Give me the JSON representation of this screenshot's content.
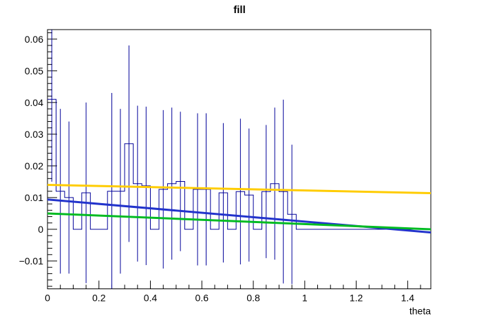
{
  "chart_data": {
    "type": "bar",
    "style": "root-histogram-with-error-bars-and-fit-lines",
    "title": "fill",
    "xlabel": "theta",
    "ylabel": "",
    "grid": false,
    "legend": "none",
    "x_range": [
      0,
      1.49
    ],
    "y_range": [
      -0.0188,
      0.063
    ],
    "x_major_ticks": [
      {
        "value": 0,
        "label": "0"
      },
      {
        "value": 0.2,
        "label": "0.2"
      },
      {
        "value": 0.4,
        "label": "0.4"
      },
      {
        "value": 0.6,
        "label": "0.6"
      },
      {
        "value": 0.8,
        "label": "0.8"
      },
      {
        "value": 1,
        "label": "1"
      },
      {
        "value": 1.2,
        "label": "1.2"
      },
      {
        "value": 1.4,
        "label": "1.4"
      }
    ],
    "x_minor_step": 0.05,
    "y_major_ticks": [
      {
        "value": -0.01,
        "label": "−0.01"
      },
      {
        "value": 0,
        "label": "0"
      },
      {
        "value": 0.01,
        "label": "0.01"
      },
      {
        "value": 0.02,
        "label": "0.02"
      },
      {
        "value": 0.03,
        "label": "0.03"
      },
      {
        "value": 0.04,
        "label": "0.04"
      },
      {
        "value": 0.05,
        "label": "0.05"
      },
      {
        "value": 0.06,
        "label": "0.06"
      }
    ],
    "y_minor_step": 0.002,
    "histogram": {
      "bin_start": 0,
      "bin_width": 0.0333333,
      "n_bins": 45,
      "values": [
        0.041,
        0.012,
        0.01,
        0,
        0.0115,
        0,
        0,
        0.012,
        0.012,
        0.027,
        0.0144,
        0.0137,
        0,
        0.0126,
        0.0144,
        0.0151,
        0,
        0.0126,
        0.0126,
        0,
        0.0115,
        0,
        0.0119,
        0.0108,
        0,
        0.0119,
        0.0144,
        0.0119,
        0.0047,
        0,
        0,
        0,
        0,
        0,
        0,
        0,
        0,
        0,
        0,
        0,
        0,
        0,
        0,
        0,
        0
      ],
      "errors": [
        0.026,
        0.026,
        0.024,
        0,
        0.0285,
        0,
        0,
        0.031,
        0.026,
        0.031,
        0.0246,
        0.025,
        0,
        0.025,
        0.024,
        0.022,
        0,
        0.024,
        0.024,
        0,
        0.022,
        0,
        0.023,
        0.021,
        0,
        0.021,
        0.024,
        0.029,
        0.022,
        0,
        0,
        0,
        0,
        0,
        0,
        0,
        0,
        0,
        0,
        0,
        0,
        0,
        0,
        0,
        0
      ]
    },
    "fits": [
      {
        "name": "fit-line-yellow",
        "color": "#ffcc00",
        "y_start": 0.014,
        "y_end": 0.0114
      },
      {
        "name": "fit-line-blue",
        "color": "#2233cc",
        "y_start": 0.0094,
        "y_end": -0.001
      },
      {
        "name": "fit-line-green",
        "color": "#00bb22",
        "y_start": 0.005,
        "y_end": 0.0
      }
    ],
    "colors": {
      "histogram": "#000099",
      "error_bar": "#000099",
      "frame": "#000000",
      "text": "#000000",
      "background": "#ffffff"
    }
  }
}
